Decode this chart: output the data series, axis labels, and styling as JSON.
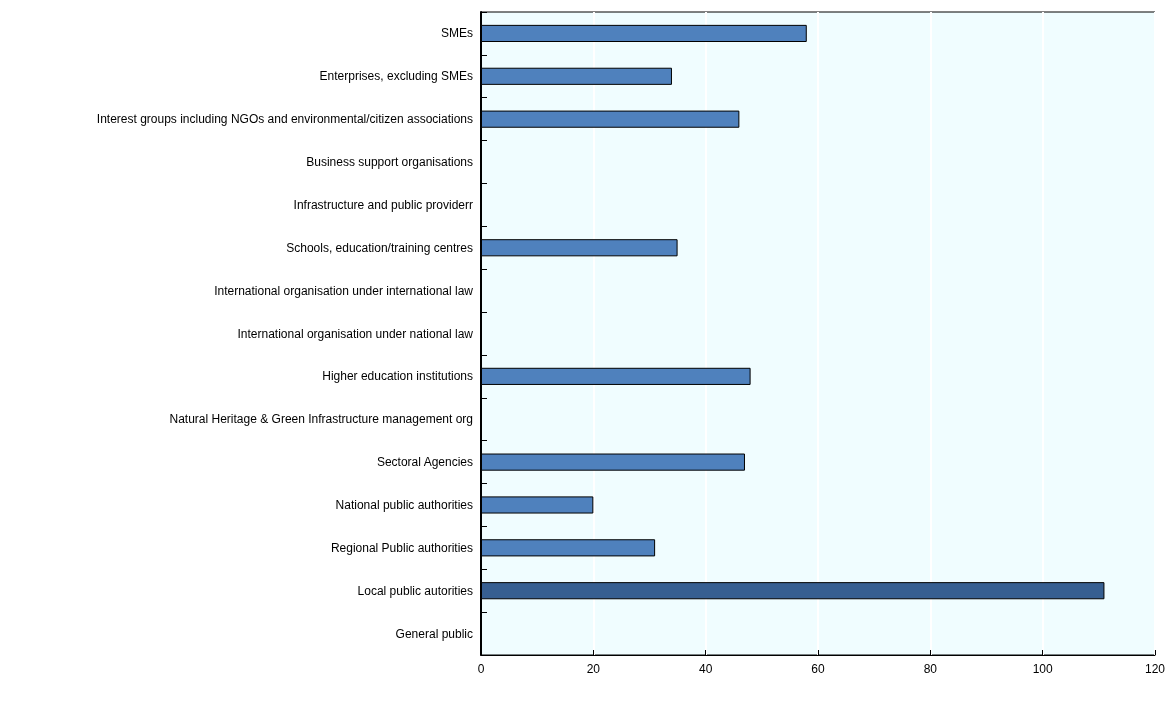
{
  "chart_data": {
    "type": "bar",
    "orientation": "horizontal",
    "categories": [
      "SMEs",
      "Enterprises, excluding SMEs",
      "Interest groups including NGOs and environmental/citizen associations",
      "Business support organisations",
      "Infrastructure and public providerr",
      "Schools, education/training centres",
      "International organisation under international law",
      "International organisation under national law",
      "Higher education institutions",
      "Natural Heritage & Green Infrastructure management org",
      "Sectoral Agencies",
      "National public authorities",
      "Regional Public authorities",
      "Local public autorities",
      "General public"
    ],
    "values": [
      58,
      34,
      46,
      null,
      null,
      35,
      null,
      null,
      48,
      null,
      47,
      20,
      31,
      111,
      null
    ],
    "colors": [
      "#4f81bd",
      "#4f81bd",
      "#4f81bd",
      null,
      null,
      "#4f81bd",
      null,
      null,
      "#4f81bd",
      null,
      "#4f81bd",
      "#4f81bd",
      "#4f81bd",
      "#375f91",
      null
    ],
    "xlim": [
      0,
      120
    ],
    "xticks": [
      0,
      20,
      40,
      60,
      80,
      100,
      120
    ],
    "grid": "x"
  }
}
